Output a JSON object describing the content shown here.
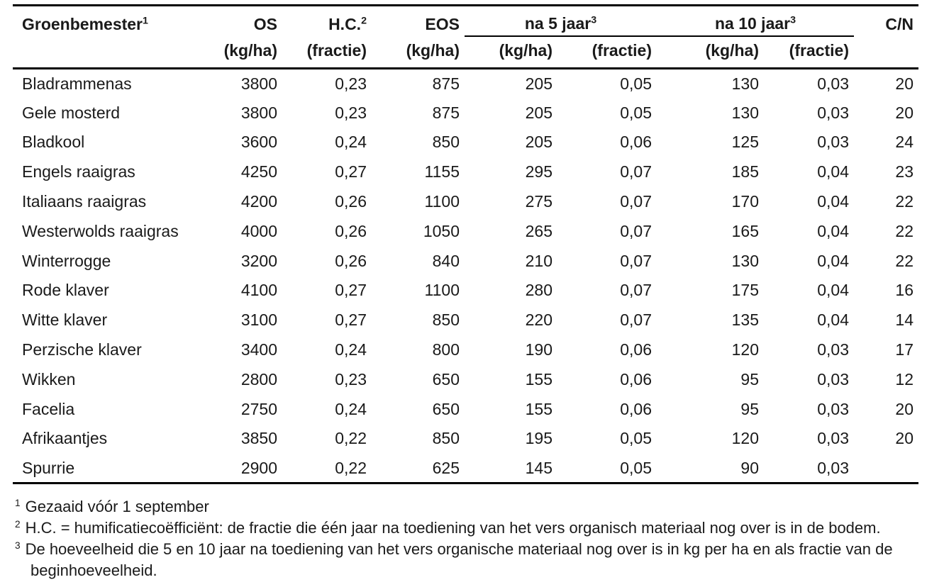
{
  "colors": {
    "text": "#1a1a1a",
    "rule": "#000000",
    "background": "#ffffff"
  },
  "table": {
    "head": {
      "name": "Groenbemester",
      "name_sup": "1",
      "os": "OS",
      "hc": "H.C.",
      "hc_sup": "2",
      "eos": "EOS",
      "na5": "na 5 jaar",
      "na5_sup": "3",
      "na10": "na 10 jaar",
      "na10_sup": "3",
      "cn": "C/N"
    },
    "units": [
      "(kg/ha)",
      "(fractie)",
      "(kg/ha)",
      "(kg/ha)",
      "(fractie)",
      "(kg/ha)",
      "(fractie)"
    ],
    "rows": [
      [
        "Bladrammenas",
        "3800",
        "0,23",
        "875",
        "205",
        "0,05",
        "130",
        "0,03",
        "20"
      ],
      [
        "Gele mosterd",
        "3800",
        "0,23",
        "875",
        "205",
        "0,05",
        "130",
        "0,03",
        "20"
      ],
      [
        "Bladkool",
        "3600",
        "0,24",
        "850",
        "205",
        "0,06",
        "125",
        "0,03",
        "24"
      ],
      [
        "Engels raaigras",
        "4250",
        "0,27",
        "1155",
        "295",
        "0,07",
        "185",
        "0,04",
        "23"
      ],
      [
        "Italiaans raaigras",
        "4200",
        "0,26",
        "1100",
        "275",
        "0,07",
        "170",
        "0,04",
        "22"
      ],
      [
        "Westerwolds raaigras",
        "4000",
        "0,26",
        "1050",
        "265",
        "0,07",
        "165",
        "0,04",
        "22"
      ],
      [
        "Winterrogge",
        "3200",
        "0,26",
        "840",
        "210",
        "0,07",
        "130",
        "0,04",
        "22"
      ],
      [
        "Rode klaver",
        "4100",
        "0,27",
        "1100",
        "280",
        "0,07",
        "175",
        "0,04",
        "16"
      ],
      [
        "Witte klaver",
        "3100",
        "0,27",
        "850",
        "220",
        "0,07",
        "135",
        "0,04",
        "14"
      ],
      [
        "Perzische klaver",
        "3400",
        "0,24",
        "800",
        "190",
        "0,06",
        "120",
        "0,03",
        "17"
      ],
      [
        "Wikken",
        "2800",
        "0,23",
        "650",
        "155",
        "0,06",
        "95",
        "0,03",
        "12"
      ],
      [
        "Facelia",
        "2750",
        "0,24",
        "650",
        "155",
        "0,06",
        "95",
        "0,03",
        "20"
      ],
      [
        "Afrikaantjes",
        "3850",
        "0,22",
        "850",
        "195",
        "0,05",
        "120",
        "0,03",
        "20"
      ],
      [
        "Spurrie",
        "2900",
        "0,22",
        "625",
        "145",
        "0,05",
        "90",
        "0,03",
        ""
      ]
    ]
  },
  "footnotes": [
    {
      "marker": "1",
      "text": "Gezaaid vóór 1 september"
    },
    {
      "marker": "2",
      "text": "H.C. = humificatiecoëfficiënt: de fractie die één jaar na toediening van het vers organisch materiaal nog over is in de bodem."
    },
    {
      "marker": "3",
      "text": "De hoeveelheid die 5 en 10 jaar na toediening van het vers organische materiaal nog over is in kg per ha en als fractie van de beginhoeveelheid."
    }
  ]
}
